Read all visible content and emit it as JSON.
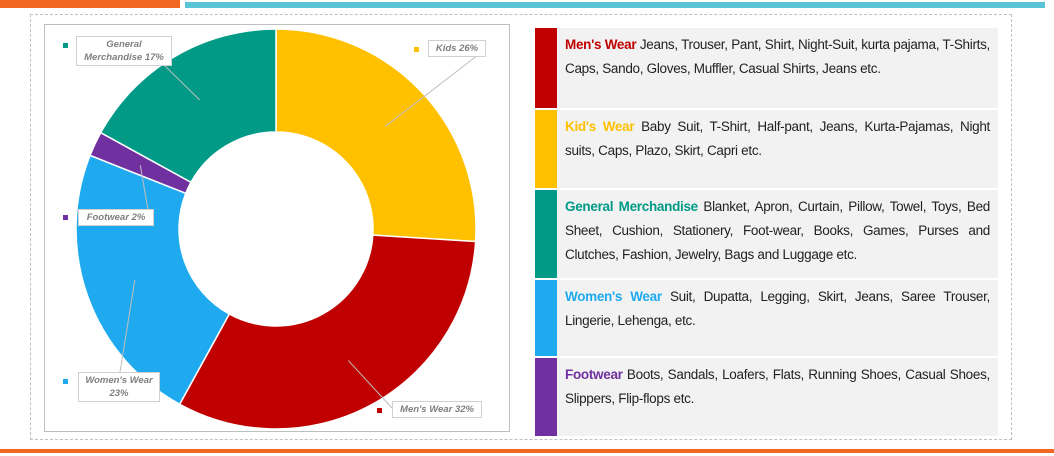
{
  "chart_data": {
    "type": "donut",
    "categories": [
      "Kids",
      "Men's Wear",
      "Women's Wear",
      "Footwear",
      "General Merchandise"
    ],
    "values": [
      26,
      32,
      23,
      2,
      17
    ],
    "value_labels": [
      "26%",
      "32%",
      "23%",
      "2%",
      "17%"
    ],
    "colors": [
      "#ffc000",
      "#c00000",
      "#1faaf0",
      "#7030a0",
      "#009a86"
    ]
  },
  "table": {
    "rows": [
      {
        "title": "Men's Wear",
        "text": "Jeans, Trouser, Pant, Shirt, Night-Suit, kurta pajama, T-Shirts, Caps, Sando, Gloves, Muffler, Casual Shirts, Jeans etc."
      },
      {
        "title": "Kid's Wear",
        "text": "Baby Suit, T-Shirt, Half-pant, Jeans, Kurta-Pajamas, Night suits, Caps, Plazo, Skirt, Capri etc."
      },
      {
        "title": "General Merchandise",
        "text": "Blanket, Apron, Curtain, Pillow, Towel, Toys, Bed Sheet, Cushion, Stationery, Foot-wear, Books, Games, Purses and Clutches, Fashion, Jewelry, Bags and Luggage etc."
      },
      {
        "title": "Women's Wear",
        "text": "Suit, Dupatta, Legging, Skirt, Jeans, Saree Trouser, Lingerie, Lehenga, etc."
      },
      {
        "title": "Footwear",
        "text": "Boots, Sandals, Loafers, Flats, Running Shoes, Casual Shoes, Slippers, Flip-flops etc."
      }
    ]
  }
}
